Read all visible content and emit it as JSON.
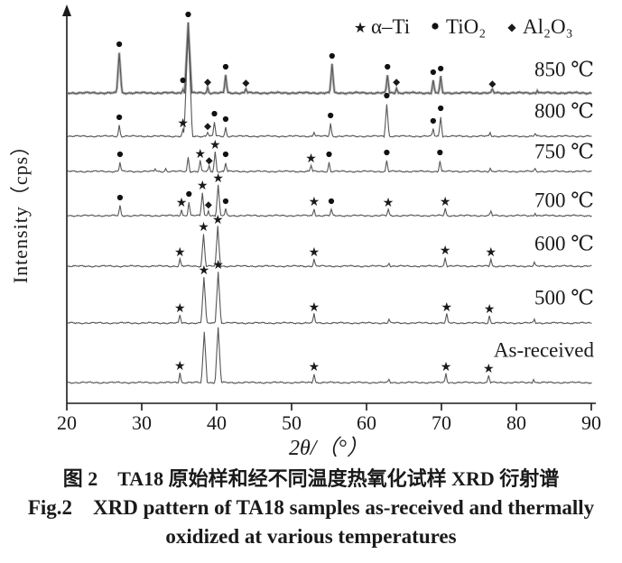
{
  "chart_data": {
    "type": "line",
    "title": "",
    "xlabel": "2θ/（°）",
    "ylabel": "Intensity（cps）",
    "xlim": [
      20,
      90
    ],
    "x_ticks": [
      20,
      30,
      40,
      50,
      60,
      70,
      80,
      90
    ],
    "grid": false,
    "legend_position": "top-right-inside",
    "legend": [
      {
        "symbol": "★",
        "marker": "star",
        "phase": "α–Ti"
      },
      {
        "symbol": "●",
        "marker": "dot",
        "phase": "TiO₂"
      },
      {
        "symbol": "◆",
        "marker": "diamond",
        "phase": "Al₂O₃"
      }
    ],
    "y_note": "stacked XRD traces, arbitrary intensity; peaks = [two_theta_deg, rel_height, marker]",
    "series": [
      {
        "name": "850 ℃",
        "baseline": 103,
        "label_dy": -26,
        "thick": true,
        "peaks": [
          [
            27.0,
            45,
            "dot"
          ],
          [
            35.5,
            5,
            "dot"
          ],
          [
            36.2,
            78,
            "dot"
          ],
          [
            38.8,
            6,
            "diamond"
          ],
          [
            41.2,
            20,
            "dot"
          ],
          [
            43.9,
            5,
            "diamond"
          ],
          [
            55.4,
            32,
            "dot"
          ],
          [
            62.8,
            20,
            "dot"
          ],
          [
            64.0,
            6,
            "diamond"
          ],
          [
            68.9,
            14,
            "dot"
          ],
          [
            69.9,
            18,
            "dot"
          ],
          [
            76.8,
            4,
            "diamond"
          ],
          [
            82.8,
            3,
            ""
          ]
        ]
      },
      {
        "name": "800 ℃",
        "baseline": 151,
        "label_dy": -28,
        "thick": false,
        "peaks": [
          [
            27.0,
            12,
            "dot"
          ],
          [
            35.5,
            7,
            "star"
          ],
          [
            36.2,
            120,
            ""
          ],
          [
            38.8,
            5,
            "diamond"
          ],
          [
            39.7,
            16,
            "dot"
          ],
          [
            41.2,
            10,
            "dot"
          ],
          [
            53.0,
            5,
            ""
          ],
          [
            55.2,
            14,
            "dot"
          ],
          [
            62.7,
            36,
            "dot"
          ],
          [
            68.9,
            8,
            "dot"
          ],
          [
            69.9,
            22,
            "dot"
          ],
          [
            76.5,
            4,
            ""
          ],
          [
            82.5,
            3,
            ""
          ]
        ]
      },
      {
        "name": "750 ℃",
        "baseline": 190,
        "label_dy": -22,
        "thick": false,
        "peaks": [
          [
            27.1,
            10,
            "dot"
          ],
          [
            31.8,
            3,
            ""
          ],
          [
            33.2,
            3,
            ""
          ],
          [
            36.2,
            16,
            ""
          ],
          [
            37.8,
            12,
            "star"
          ],
          [
            39.0,
            6,
            "diamond"
          ],
          [
            39.8,
            22,
            "star"
          ],
          [
            41.2,
            10,
            "dot"
          ],
          [
            52.6,
            7,
            "star"
          ],
          [
            55.0,
            10,
            "dot"
          ],
          [
            62.7,
            12,
            "dot"
          ],
          [
            69.8,
            12,
            "dot"
          ],
          [
            76.5,
            4,
            ""
          ],
          [
            82.5,
            3,
            ""
          ]
        ]
      },
      {
        "name": "700 ℃",
        "baseline": 239,
        "label_dy": -17,
        "thick": false,
        "peaks": [
          [
            27.1,
            11,
            "dot"
          ],
          [
            35.3,
            7,
            "star"
          ],
          [
            36.3,
            15,
            "dot"
          ],
          [
            38.1,
            26,
            "star"
          ],
          [
            38.9,
            6,
            "diamond"
          ],
          [
            40.2,
            34,
            "star"
          ],
          [
            41.2,
            7,
            "dot"
          ],
          [
            53.0,
            8,
            "star"
          ],
          [
            55.3,
            7,
            "dot"
          ],
          [
            62.9,
            7,
            "star"
          ],
          [
            70.5,
            8,
            "star"
          ],
          [
            76.6,
            5,
            ""
          ],
          [
            82.5,
            3,
            ""
          ]
        ]
      },
      {
        "name": "600 ℃",
        "baseline": 295,
        "label_dy": -25,
        "thick": false,
        "peaks": [
          [
            35.1,
            8,
            "star"
          ],
          [
            38.25,
            36,
            "star"
          ],
          [
            40.15,
            44,
            "star"
          ],
          [
            53.0,
            8,
            "star"
          ],
          [
            63.0,
            4,
            ""
          ],
          [
            70.5,
            10,
            "star"
          ],
          [
            76.6,
            8,
            "star"
          ],
          [
            82.4,
            4,
            ""
          ]
        ]
      },
      {
        "name": "500 ℃",
        "baseline": 358,
        "label_dy": -28,
        "thick": false,
        "peaks": [
          [
            35.1,
            9,
            "star"
          ],
          [
            38.3,
            51,
            "star"
          ],
          [
            40.2,
            57,
            "star"
          ],
          [
            53.0,
            10,
            "star"
          ],
          [
            63.0,
            4,
            ""
          ],
          [
            70.7,
            10,
            "star"
          ],
          [
            76.4,
            8,
            "star"
          ],
          [
            82.4,
            4,
            ""
          ]
        ]
      },
      {
        "name": "As-received",
        "baseline": 424,
        "label_dy": -36,
        "thick": false,
        "peaks": [
          [
            35.1,
            11,
            "star"
          ],
          [
            38.35,
            56,
            ""
          ],
          [
            40.2,
            61,
            ""
          ],
          [
            53.0,
            10,
            "star"
          ],
          [
            63.0,
            3,
            ""
          ],
          [
            70.6,
            10,
            "star"
          ],
          [
            76.3,
            8,
            "star"
          ],
          [
            82.3,
            4,
            ""
          ]
        ]
      }
    ],
    "colors": {
      "trace": "#575757",
      "trace_underlay": "#b3b3b3",
      "marker": "#111111",
      "axis": "#1a1a1a"
    }
  },
  "caption": {
    "line1_cn": "图 2　TA18 原始样和经不同温度热氧化试样 XRD 衍射谱",
    "line2_en": "Fig.2　XRD pattern of TA18 samples as-received and thermally",
    "line3_en": "oxidized at various temperatures"
  }
}
